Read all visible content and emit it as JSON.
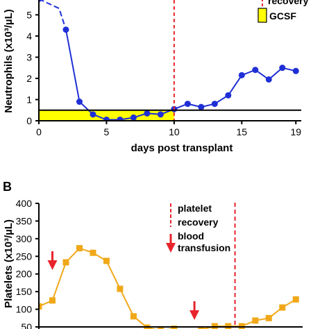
{
  "chart_data": [
    {
      "type": "line",
      "panel_label": "",
      "xlabel": "days post transplant",
      "ylabel": "Neutrophils (x10³/µL)",
      "xlim": [
        0,
        19.5
      ],
      "ylim": [
        0,
        5.7
      ],
      "xticks": [
        0,
        5,
        10,
        15,
        19
      ],
      "yticks": [
        0,
        1,
        2,
        3,
        4,
        5
      ],
      "grid": false,
      "series": [
        {
          "color": "#1f2fd6",
          "x": [
            0,
            1.5,
            2,
            3,
            4,
            5,
            6,
            7,
            8,
            9,
            10,
            11,
            12,
            13,
            14,
            15,
            16,
            17,
            18,
            19
          ],
          "y": [
            5.75,
            5.3,
            4.3,
            0.9,
            0.3,
            0.05,
            0.05,
            0.15,
            0.35,
            0.3,
            0.55,
            0.8,
            0.65,
            0.8,
            1.2,
            2.15,
            2.4,
            1.95,
            2.5,
            2.35
          ]
        }
      ],
      "threshold_line": {
        "y": 0.5,
        "color": "#000000"
      },
      "gcsf_band": {
        "x_start": 0,
        "x_end": 10,
        "y_start": 0,
        "y_end": 0.5,
        "color": "#ffff00"
      },
      "recovery_line": {
        "x": 10,
        "color": "#e8242b"
      },
      "legend": [
        {
          "label": "recovery",
          "marker": "dashed-line",
          "color": "#e8242b"
        },
        {
          "label": "GCSF",
          "marker": "box",
          "color": "#ffff00"
        }
      ]
    },
    {
      "type": "line",
      "panel_label": "B",
      "xlabel": "",
      "ylabel": "Platelets (x10³/µL)",
      "xlim": [
        0,
        19.5
      ],
      "ylim": [
        50,
        400
      ],
      "yticks": [
        50,
        100,
        150,
        200,
        250,
        300,
        350,
        400
      ],
      "grid": false,
      "series": [
        {
          "color": "#f0a818",
          "x": [
            0,
            1,
            2,
            3,
            4,
            5,
            6,
            7,
            8,
            9,
            10,
            11,
            12,
            13,
            14,
            15,
            16,
            17,
            18,
            19
          ],
          "y": [
            108,
            125,
            233,
            273,
            260,
            237,
            158,
            80,
            48,
            40,
            45,
            35,
            42,
            52,
            52,
            52,
            68,
            75,
            105,
            128
          ]
        }
      ],
      "recovery_line": {
        "x": 14.5,
        "color": "#e8242b"
      },
      "transfusions": [
        {
          "x": 1
        },
        {
          "x": 11.5
        }
      ],
      "legend": [
        {
          "label": "platelet recovery",
          "line1": "platelet",
          "line2": "recovery",
          "marker": "dashed-line",
          "color": "#e8242b"
        },
        {
          "label": "blood transfusion",
          "line1": "blood",
          "line2": "transfusion",
          "marker": "arrow",
          "color": "#e8242b"
        }
      ]
    }
  ]
}
